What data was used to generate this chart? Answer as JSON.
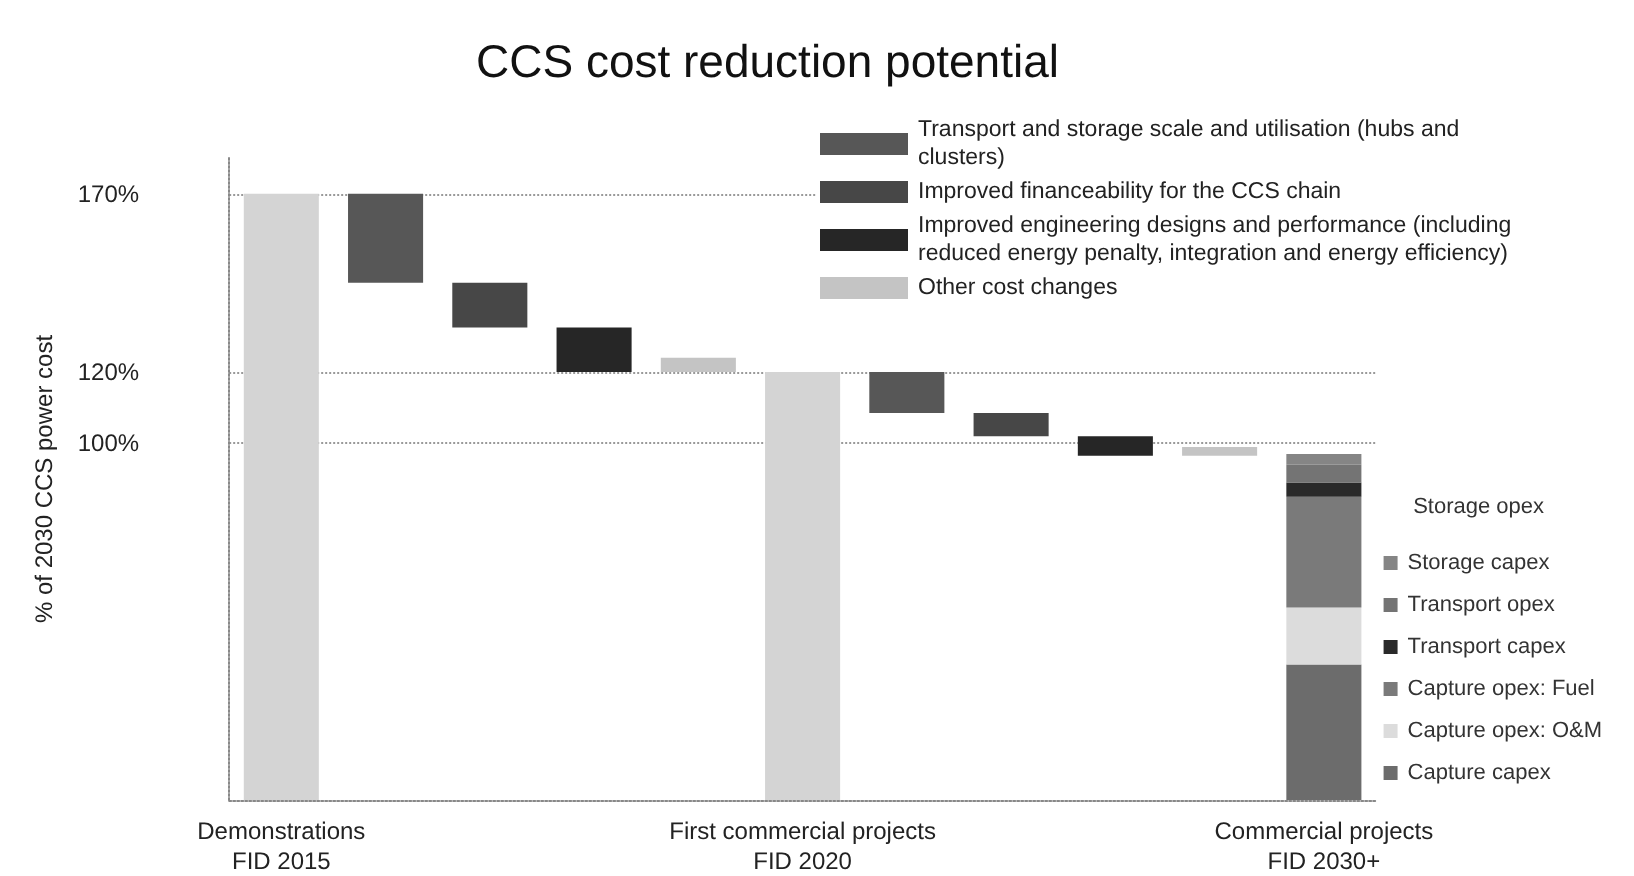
{
  "chart_data": {
    "type": "bar",
    "title": "CCS cost reduction potential",
    "ylabel": "% of 2030 CCS power cost",
    "categories": [
      "Demonstrations\nFID 2015",
      null,
      null,
      null,
      null,
      "First commercial projects\nFID 2020",
      null,
      null,
      null,
      null,
      "Commercial projects\nFID 2030+"
    ],
    "ylim": [
      0,
      180
    ],
    "yticks": [
      {
        "value": 100,
        "label": "100%"
      },
      {
        "value": 120,
        "label": "120%"
      },
      {
        "value": 170,
        "label": "170%"
      }
    ],
    "grid": "y",
    "legend": "right",
    "stacked": true,
    "legend_title": "Storage opex",
    "series": [
      {
        "color": "#d4d4d4",
        "values": [
          170,
          null,
          null,
          null,
          null,
          120,
          null,
          null,
          null,
          null,
          null
        ]
      },
      {
        "name": "Transport and storage scale and utilisation (hubs and clusters)",
        "color": "#575757",
        "values": [
          null,
          25,
          null,
          null,
          null,
          null,
          11.5,
          null,
          null,
          null,
          null
        ],
        "base": [
          null,
          145,
          null,
          null,
          null,
          null,
          108.5,
          null,
          null,
          null,
          null
        ]
      },
      {
        "name": "Improved financeability for the CCS chain",
        "color": "#474747",
        "values": [
          null,
          null,
          12.5,
          null,
          null,
          null,
          null,
          6.5,
          null,
          null,
          null
        ],
        "base": [
          null,
          null,
          132.5,
          null,
          null,
          null,
          null,
          102,
          null,
          null,
          null
        ]
      },
      {
        "name": "Improved engineering designs and performance (including reduced energy penalty, integration and energy efficiency)",
        "color": "#262626",
        "values": [
          null,
          null,
          null,
          12.5,
          null,
          null,
          null,
          null,
          5.5,
          null,
          null
        ],
        "base": [
          null,
          null,
          null,
          120,
          null,
          null,
          null,
          null,
          96.5,
          null,
          null
        ]
      },
      {
        "name": "Other cost changes",
        "color": "#c4c4c4",
        "values": [
          null,
          null,
          null,
          null,
          4,
          null,
          null,
          null,
          null,
          2.5,
          null
        ],
        "base": [
          null,
          null,
          null,
          null,
          120,
          null,
          null,
          null,
          null,
          96.5,
          null
        ]
      },
      {
        "name": "Capture capex",
        "color": "#6c6c6c",
        "values": [
          null,
          null,
          null,
          null,
          null,
          null,
          null,
          null,
          null,
          null,
          38
        ]
      },
      {
        "name": "Capture opex: O&M",
        "color": "#dcdcdc",
        "values": [
          null,
          null,
          null,
          null,
          null,
          null,
          null,
          null,
          null,
          null,
          16
        ]
      },
      {
        "name": "Capture opex: Fuel",
        "color": "#7a7a7a",
        "values": [
          null,
          null,
          null,
          null,
          null,
          null,
          null,
          null,
          null,
          null,
          31
        ]
      },
      {
        "name": "Transport capex",
        "color": "#2a2a2a",
        "values": [
          null,
          null,
          null,
          null,
          null,
          null,
          null,
          null,
          null,
          null,
          4
        ]
      },
      {
        "name": "Transport opex",
        "color": "#747474",
        "values": [
          null,
          null,
          null,
          null,
          null,
          null,
          null,
          null,
          null,
          null,
          5
        ]
      },
      {
        "name": "Storage capex",
        "color": "#858585",
        "values": [
          null,
          null,
          null,
          null,
          null,
          null,
          null,
          null,
          null,
          null,
          3
        ]
      }
    ]
  }
}
